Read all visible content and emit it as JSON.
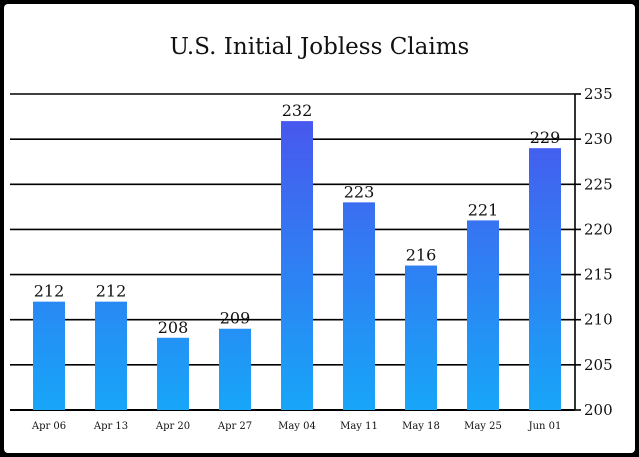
{
  "chart_data": {
    "type": "bar",
    "title": "U.S. Initial Jobless Claims",
    "xlabel": "",
    "ylabel": "",
    "categories": [
      "Apr 06",
      "Apr 13",
      "Apr 20",
      "Apr 27",
      "May 04",
      "May 11",
      "May 18",
      "May 25",
      "Jun 01"
    ],
    "values": [
      212,
      212,
      208,
      209,
      232,
      223,
      216,
      221,
      229
    ],
    "ylim": [
      200,
      235
    ],
    "yticks": [
      200,
      205,
      210,
      215,
      220,
      225,
      230,
      235
    ],
    "y_axis_side": "right",
    "grid": true,
    "bar_color_top": "#4759ee",
    "bar_color_bottom": "#17a6f8",
    "grid_color": "#000000"
  }
}
